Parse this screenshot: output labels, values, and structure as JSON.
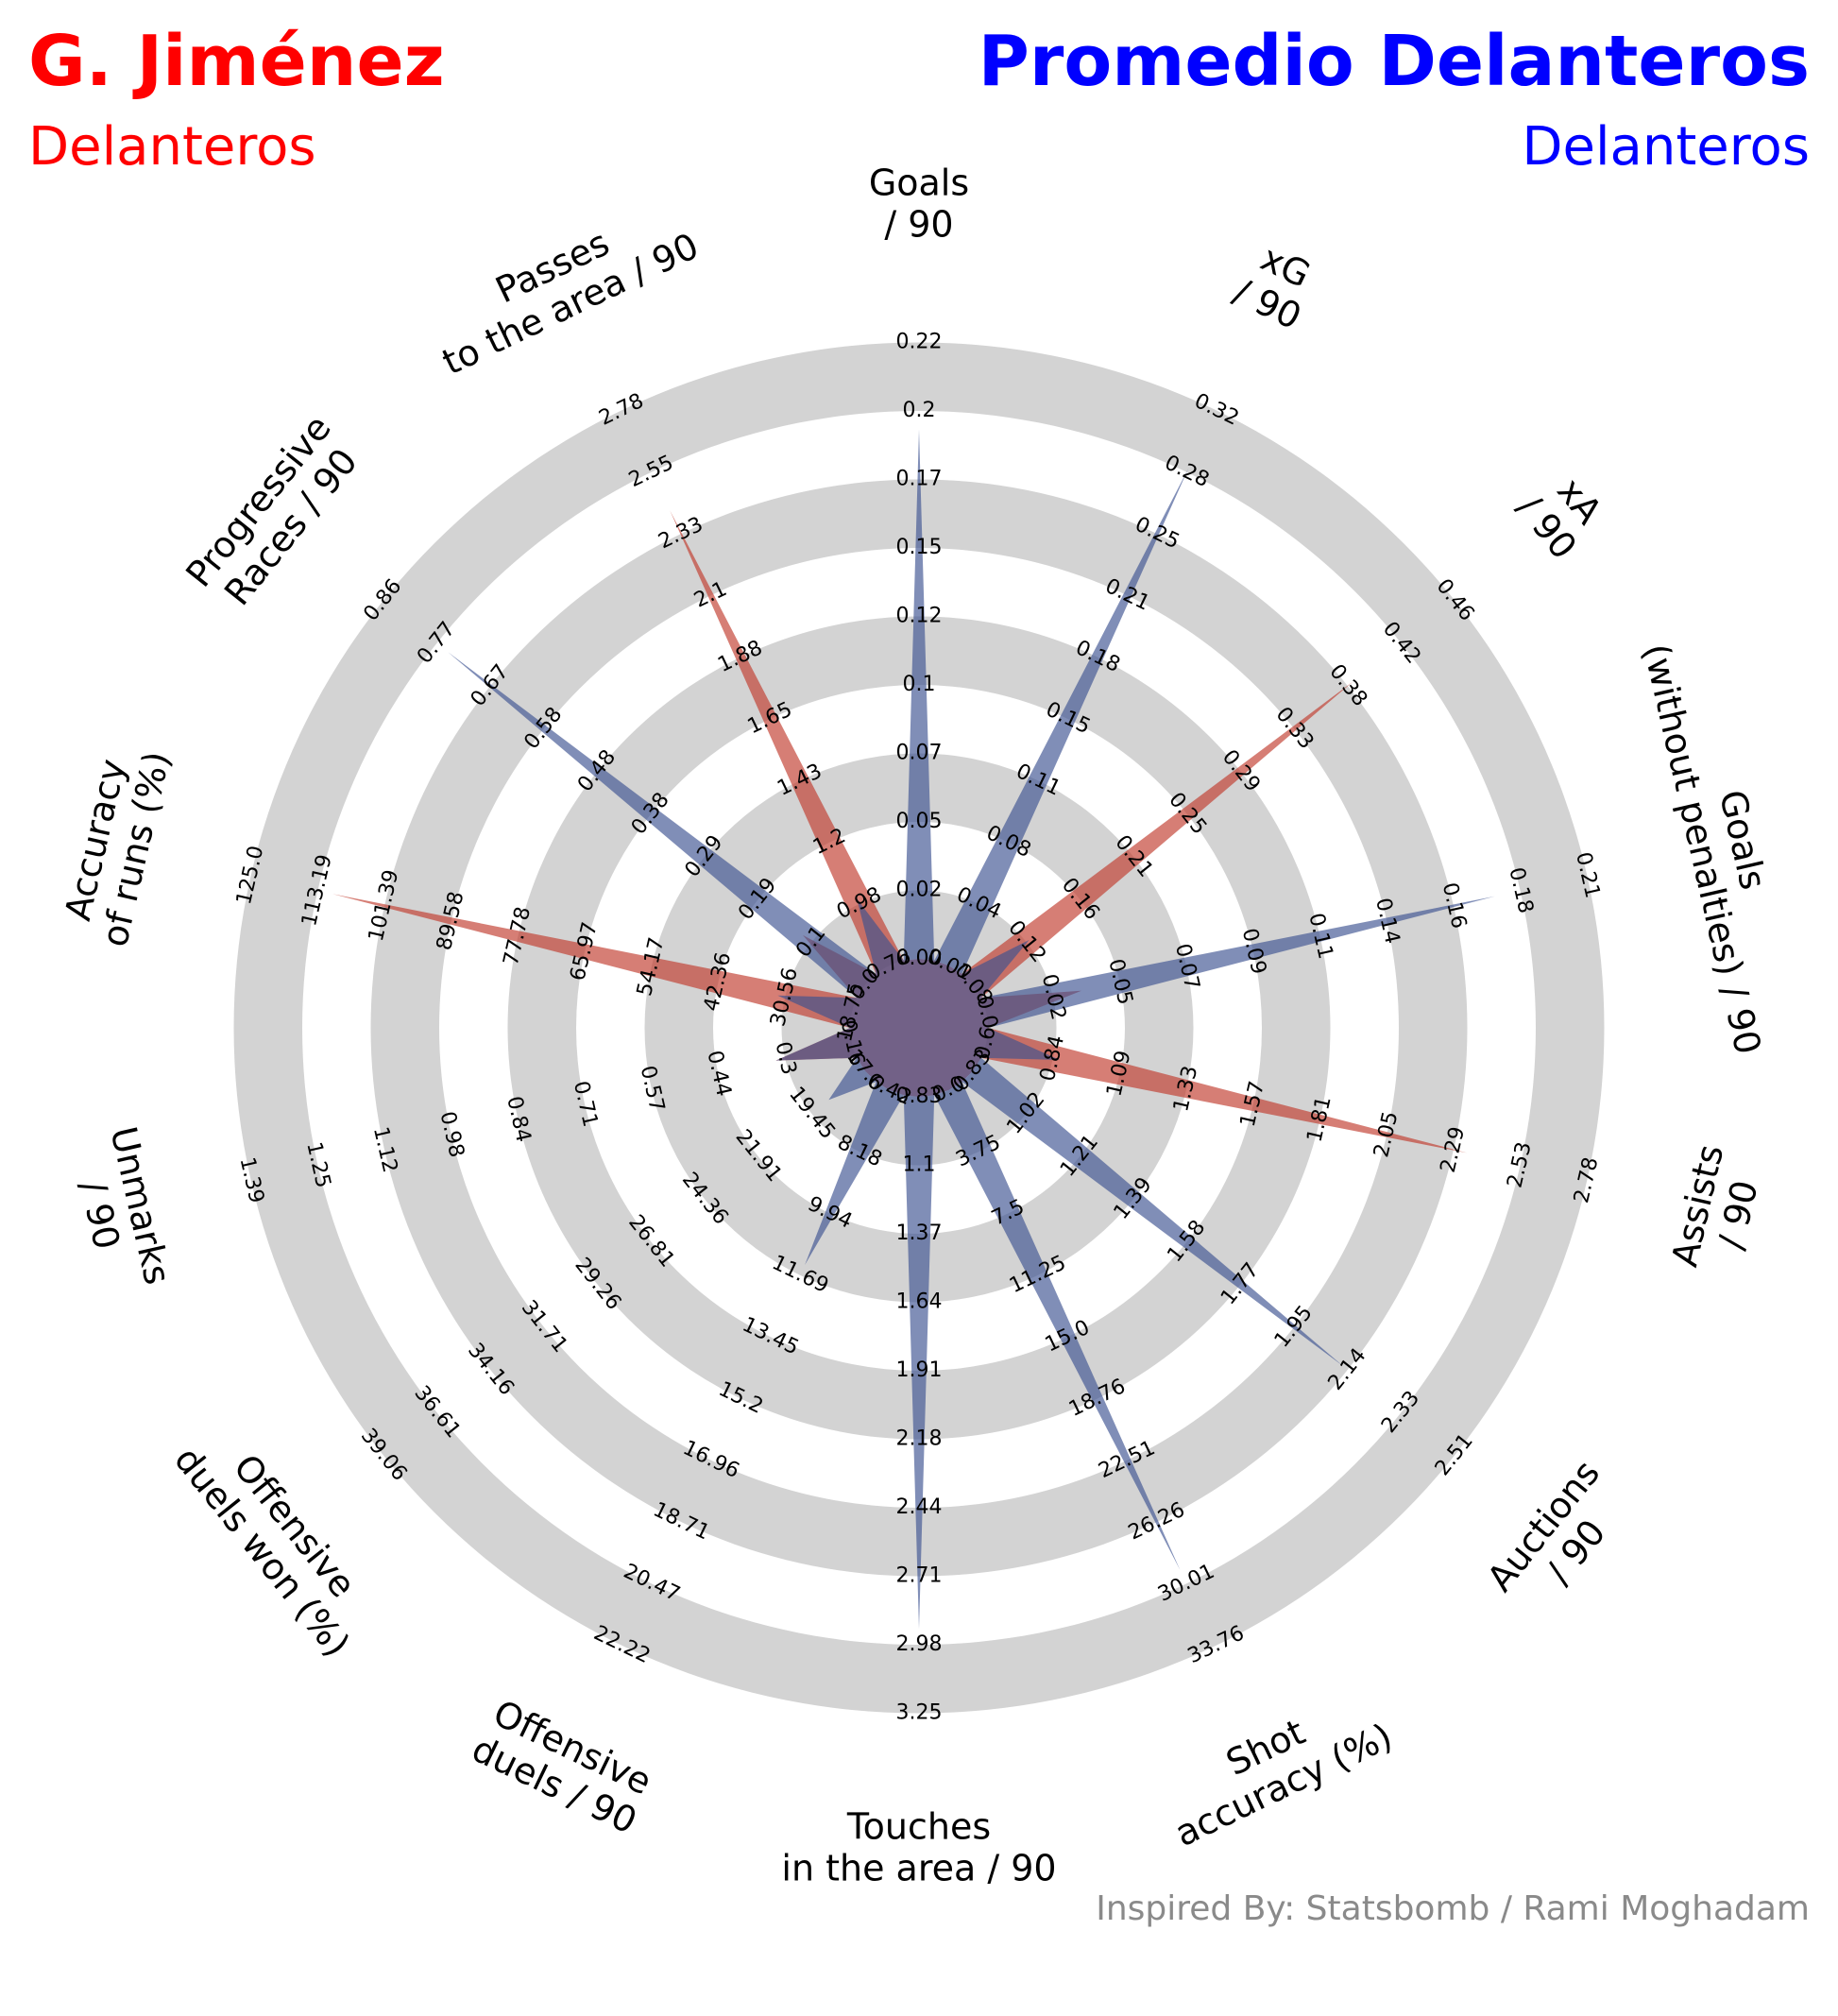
{
  "header": {
    "left_title": "G. Jiménez",
    "left_subtitle": "Delanteros",
    "right_title": "Promedio Delanteros",
    "right_subtitle": "Delanteros"
  },
  "credit": "Inspired By: Statsbomb / Rami Moghadam",
  "colors": {
    "player": "#ff0000",
    "average": "#0000ff",
    "player_fill": "#c0392b",
    "average_fill": "#3c5291",
    "ring": "#d3d3d3"
  },
  "chart_data": {
    "type": "radar",
    "grid": "alternating rings",
    "legend": "top",
    "parameters": [
      {
        "label": [
          "Goals",
          "/ 90"
        ],
        "min": 0.0,
        "max": 0.22,
        "ticks": [
          "0.00",
          "0.02",
          "0.05",
          "0.07",
          "0.1",
          "0.12",
          "0.15",
          "0.17",
          "0.2",
          "0.22"
        ]
      },
      {
        "label": [
          "xG",
          "/ 90"
        ],
        "min": 0.01,
        "max": 0.32,
        "ticks": [
          "0.01",
          "0.04",
          "0.08",
          "0.11",
          "0.15",
          "0.18",
          "0.21",
          "0.25",
          "0.28",
          "0.32"
        ]
      },
      {
        "label": [
          "xA",
          "/ 90"
        ],
        "min": 0.08,
        "max": 0.46,
        "ticks": [
          "0.08",
          "0.12",
          "0.16",
          "0.21",
          "0.25",
          "0.29",
          "0.33",
          "0.38",
          "0.42",
          "0.46"
        ]
      },
      {
        "label": [
          "Goals",
          "(without penalties) / 90"
        ],
        "min": 0.0,
        "max": 0.21,
        "ticks": [
          "0.0",
          "0.02",
          "0.05",
          "0.07",
          "0.09",
          "0.11",
          "0.14",
          "0.16",
          "0.18",
          "0.21"
        ]
      },
      {
        "label": [
          "Assists",
          "/ 90"
        ],
        "min": 0.6,
        "max": 2.78,
        "ticks": [
          "0.6",
          "0.84",
          "1.09",
          "1.33",
          "1.57",
          "1.81",
          "2.05",
          "2.29",
          "2.53",
          "2.78"
        ]
      },
      {
        "label": [
          "Auctions",
          "/ 90"
        ],
        "min": 0.83,
        "max": 2.51,
        "ticks": [
          "0.83",
          "1.02",
          "1.21",
          "1.39",
          "1.58",
          "1.77",
          "1.95",
          "2.14",
          "2.33",
          "2.51"
        ]
      },
      {
        "label": [
          "Shot",
          "accuracy (%)"
        ],
        "min": 0.0,
        "max": 33.76,
        "ticks": [
          "0.0",
          "3.75",
          "7.5",
          "11.25",
          "15.0",
          "18.76",
          "22.51",
          "26.26",
          "30.01",
          "33.76"
        ]
      },
      {
        "label": [
          "Touches",
          "in the area / 90"
        ],
        "min": 0.83,
        "max": 3.25,
        "ticks": [
          "0.83",
          "1.1",
          "1.37",
          "1.64",
          "1.91",
          "2.18",
          "2.44",
          "2.71",
          "2.98",
          "3.25"
        ]
      },
      {
        "label": [
          "Offensive",
          "duels / 90"
        ],
        "min": 6.42,
        "max": 22.22,
        "ticks": [
          "6.42",
          "8.18",
          "9.94",
          "11.69",
          "13.45",
          "15.2",
          "16.96",
          "18.71",
          "20.47",
          "22.22"
        ]
      },
      {
        "label": [
          "Offensive",
          "duels won (%)"
        ],
        "min": 17.0,
        "max": 39.06,
        "ticks": [
          "17.0",
          "19.45",
          "21.91",
          "24.36",
          "26.81",
          "29.26",
          "31.71",
          "34.16",
          "36.61",
          "39.06"
        ]
      },
      {
        "label": [
          "Unmarks",
          "/ 90"
        ],
        "min": 0.16,
        "max": 1.39,
        "ticks": [
          "0.16",
          "0.3",
          "0.44",
          "0.57",
          "0.71",
          "0.84",
          "0.98",
          "1.12",
          "1.25",
          "1.39"
        ]
      },
      {
        "label": [
          "Accuracy",
          "of runs (%)"
        ],
        "min": 18.75,
        "max": 125.0,
        "ticks": [
          "18.75",
          "30.56",
          "42.36",
          "54.17",
          "65.97",
          "77.78",
          "89.58",
          "101.39",
          "113.19",
          "125.0"
        ]
      },
      {
        "label": [
          "Progressive",
          "Races / 90"
        ],
        "min": 0.0,
        "max": 0.86,
        "ticks": [
          "0.0",
          "0.1",
          "0.19",
          "0.29",
          "0.38",
          "0.48",
          "0.58",
          "0.67",
          "0.77",
          "0.86"
        ]
      },
      {
        "label": [
          "Passes",
          "to the area / 90"
        ],
        "min": 0.76,
        "max": 2.78,
        "ticks": [
          "0.76",
          "0.98",
          "1.2",
          "1.43",
          "1.65",
          "1.88",
          "2.1",
          "2.33",
          "2.55",
          "2.78"
        ]
      }
    ],
    "series": [
      {
        "name": "G. Jiménez",
        "values": [
          0.0,
          0.01,
          0.35,
          0.03,
          2.17,
          0.83,
          0.0,
          0.83,
          6.42,
          17.0,
          0.3,
          101.39,
          0.1,
          2.25
        ]
      },
      {
        "name": "Promedio Delanteros",
        "values": [
          0.17,
          0.26,
          0.12,
          0.16,
          0.84,
          1.99,
          26.26,
          2.71,
          10.9,
          18.5,
          0.3,
          30.56,
          0.67,
          0.98
        ]
      }
    ]
  }
}
